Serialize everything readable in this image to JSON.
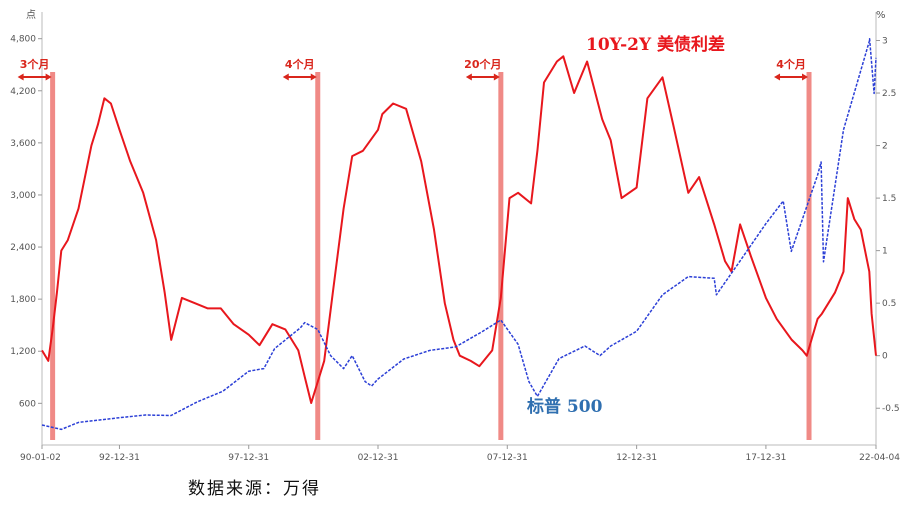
{
  "source_note": "数据来源：万得",
  "chart_data": {
    "type": "line",
    "left_axis": {
      "unit": "点",
      "ticks": [
        "600",
        "1,200",
        "1,800",
        "2,400",
        "3,000",
        "3,600",
        "4,200",
        "4,800"
      ],
      "range": [
        120,
        4900
      ]
    },
    "right_axis": {
      "unit": "%",
      "ticks": [
        "-0.5",
        "0",
        "0.5",
        "1",
        "1.5",
        "2",
        "2.5",
        "3"
      ],
      "range": [
        -0.85,
        3.1
      ]
    },
    "x_axis": {
      "ticks": [
        "90-01-02",
        "92-12-31",
        "97-12-31",
        "02-12-31",
        "07-12-31",
        "12-12-31",
        "17-12-31",
        "22-04-04"
      ],
      "range": [
        "1990-01-02",
        "2022-04-04"
      ]
    },
    "series": [
      {
        "name": "10Y-2Y 美债利差",
        "axis": "right",
        "color": "#e8171d",
        "points": [
          [
            "1990-01-02",
            0.05
          ],
          [
            "1990-04-01",
            -0.05
          ],
          [
            "1990-06-01",
            0.25
          ],
          [
            "1990-08-01",
            0.6
          ],
          [
            "1990-10-01",
            1.0
          ],
          [
            "1991-01-01",
            1.1
          ],
          [
            "1991-06-01",
            1.4
          ],
          [
            "1991-12-01",
            2.0
          ],
          [
            "1992-03-01",
            2.2
          ],
          [
            "1992-06-01",
            2.45
          ],
          [
            "1992-09-01",
            2.4
          ],
          [
            "1992-12-31",
            2.15
          ],
          [
            "1993-06-01",
            1.85
          ],
          [
            "1993-12-01",
            1.55
          ],
          [
            "1994-06-01",
            1.1
          ],
          [
            "1994-10-01",
            0.6
          ],
          [
            "1995-01-01",
            0.15
          ],
          [
            "1995-06-01",
            0.55
          ],
          [
            "1995-12-01",
            0.5
          ],
          [
            "1996-06-01",
            0.45
          ],
          [
            "1996-12-01",
            0.45
          ],
          [
            "1997-06-01",
            0.3
          ],
          [
            "1997-12-31",
            0.2
          ],
          [
            "1998-06-01",
            0.1
          ],
          [
            "1998-12-01",
            0.3
          ],
          [
            "1999-06-01",
            0.25
          ],
          [
            "1999-12-01",
            0.05
          ],
          [
            "2000-03-01",
            -0.2
          ],
          [
            "2000-06-01",
            -0.45
          ],
          [
            "2000-12-01",
            -0.05
          ],
          [
            "2001-04-01",
            0.6
          ],
          [
            "2001-09-01",
            1.4
          ],
          [
            "2001-12-31",
            1.9
          ],
          [
            "2002-06-01",
            1.95
          ],
          [
            "2002-12-31",
            2.15
          ],
          [
            "2003-03-01",
            2.3
          ],
          [
            "2003-08-01",
            2.4
          ],
          [
            "2004-02-01",
            2.35
          ],
          [
            "2004-09-01",
            1.85
          ],
          [
            "2005-03-01",
            1.2
          ],
          [
            "2005-08-01",
            0.5
          ],
          [
            "2005-12-01",
            0.15
          ],
          [
            "2006-03-01",
            0.0
          ],
          [
            "2006-08-01",
            -0.05
          ],
          [
            "2006-12-01",
            -0.1
          ],
          [
            "2007-06-01",
            0.05
          ],
          [
            "2007-10-01",
            0.55
          ],
          [
            "2008-02-01",
            1.5
          ],
          [
            "2008-06-01",
            1.55
          ],
          [
            "2008-12-01",
            1.45
          ],
          [
            "2009-03-01",
            1.95
          ],
          [
            "2009-06-01",
            2.6
          ],
          [
            "2009-12-01",
            2.8
          ],
          [
            "2010-03-01",
            2.85
          ],
          [
            "2010-08-01",
            2.5
          ],
          [
            "2011-02-01",
            2.8
          ],
          [
            "2011-09-01",
            2.25
          ],
          [
            "2011-12-31",
            2.05
          ],
          [
            "2012-06-01",
            1.5
          ],
          [
            "2012-12-31",
            1.6
          ],
          [
            "2013-06-01",
            2.45
          ],
          [
            "2013-12-31",
            2.65
          ],
          [
            "2014-06-01",
            2.2
          ],
          [
            "2014-12-31",
            1.55
          ],
          [
            "2015-06-01",
            1.7
          ],
          [
            "2015-12-31",
            1.25
          ],
          [
            "2016-06-01",
            0.9
          ],
          [
            "2016-09-01",
            0.8
          ],
          [
            "2016-12-31",
            1.25
          ],
          [
            "2017-06-01",
            0.95
          ],
          [
            "2017-12-31",
            0.55
          ],
          [
            "2018-06-01",
            0.35
          ],
          [
            "2018-12-31",
            0.15
          ],
          [
            "2019-06-01",
            0.05
          ],
          [
            "2019-08-01",
            0.0
          ],
          [
            "2019-12-31",
            0.35
          ],
          [
            "2020-03-01",
            0.4
          ],
          [
            "2020-06-01",
            0.5
          ],
          [
            "2020-09-01",
            0.6
          ],
          [
            "2020-12-31",
            0.8
          ],
          [
            "2021-03-01",
            1.5
          ],
          [
            "2021-06-01",
            1.3
          ],
          [
            "2021-09-01",
            1.2
          ],
          [
            "2021-12-31",
            0.8
          ],
          [
            "2022-02-01",
            0.4
          ],
          [
            "2022-04-04",
            0.0
          ]
        ]
      },
      {
        "name": "标普 500",
        "axis": "left",
        "color": "#2b3fd6",
        "points": [
          [
            "1990-01-02",
            350
          ],
          [
            "1990-10-01",
            300
          ],
          [
            "1991-06-01",
            380
          ],
          [
            "1992-12-31",
            435
          ],
          [
            "1993-12-31",
            465
          ],
          [
            "1994-12-31",
            460
          ],
          [
            "1995-12-31",
            615
          ],
          [
            "1996-12-31",
            740
          ],
          [
            "1997-12-31",
            970
          ],
          [
            "1998-08-01",
            1000
          ],
          [
            "1998-12-31",
            1230
          ],
          [
            "1999-12-31",
            1470
          ],
          [
            "2000-03-01",
            1530
          ],
          [
            "2000-09-01",
            1450
          ],
          [
            "2001-03-01",
            1150
          ],
          [
            "2001-09-01",
            1000
          ],
          [
            "2001-12-31",
            1150
          ],
          [
            "2002-07-01",
            850
          ],
          [
            "2002-10-01",
            800
          ],
          [
            "2002-12-31",
            880
          ],
          [
            "2003-12-31",
            1110
          ],
          [
            "2004-12-31",
            1210
          ],
          [
            "2005-12-31",
            1250
          ],
          [
            "2006-12-31",
            1420
          ],
          [
            "2007-10-01",
            1560
          ],
          [
            "2008-06-01",
            1280
          ],
          [
            "2008-11-01",
            850
          ],
          [
            "2009-03-01",
            680
          ],
          [
            "2009-12-31",
            1115
          ],
          [
            "2010-12-31",
            1260
          ],
          [
            "2011-08-01",
            1150
          ],
          [
            "2011-12-31",
            1260
          ],
          [
            "2012-12-31",
            1430
          ],
          [
            "2013-12-31",
            1850
          ],
          [
            "2014-12-31",
            2060
          ],
          [
            "2015-12-31",
            2040
          ],
          [
            "2016-02-01",
            1850
          ],
          [
            "2016-12-31",
            2240
          ],
          [
            "2017-12-31",
            2670
          ],
          [
            "2018-09-01",
            2930
          ],
          [
            "2018-12-24",
            2350
          ],
          [
            "2019-12-31",
            3230
          ],
          [
            "2020-02-19",
            3380
          ],
          [
            "2020-03-23",
            2230
          ],
          [
            "2020-12-31",
            3750
          ],
          [
            "2021-12-31",
            4770
          ],
          [
            "2022-01-03",
            4800
          ],
          [
            "2022-03-08",
            4170
          ],
          [
            "2022-04-04",
            4580
          ]
        ]
      }
    ],
    "inversion_markers": [
      {
        "label": "3个月",
        "date": "1990-06-01"
      },
      {
        "label": "4个月",
        "date": "2000-09-01"
      },
      {
        "label": "20个月",
        "date": "2007-10-01"
      },
      {
        "label": "4个月",
        "date": "2019-09-01"
      }
    ],
    "colors": {
      "marker_bar": "#f08a86",
      "annotation": "#d9261c",
      "spread_title": "#e8171d",
      "spx_title": "#2f6fb0"
    }
  }
}
